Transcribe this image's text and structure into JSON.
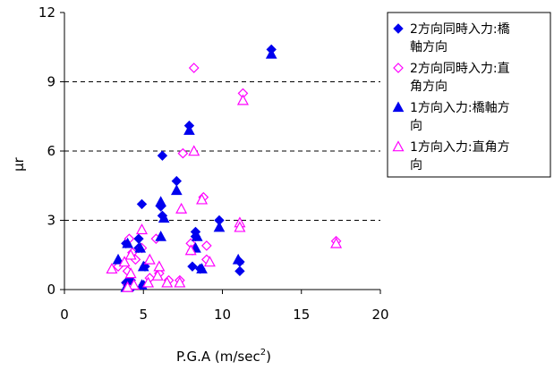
{
  "chart_data": {
    "type": "scatter",
    "title": "",
    "xlabel": "P.G.A (m/sec",
    "xlabel_sup": "2",
    "xlabel_suffix": ")",
    "ylabel": "μr",
    "xlim": [
      0,
      20
    ],
    "ylim": [
      0,
      12
    ],
    "x_ticks": [
      "0",
      "5",
      "10",
      "15",
      "20"
    ],
    "y_ticks": [
      "0",
      "3",
      "6",
      "9",
      "12"
    ],
    "grid": "horizontal dashed",
    "legend_position": "right",
    "series": [
      {
        "name_lines": [
          "2方向同時入力:橋",
          "軸方向"
        ],
        "marker": "diamond-filled",
        "color": "#0000ee",
        "points": [
          [
            13.1,
            10.4
          ],
          [
            7.9,
            7.1
          ],
          [
            6.2,
            5.8
          ],
          [
            7.1,
            4.7
          ],
          [
            4.9,
            3.7
          ],
          [
            6.1,
            3.6
          ],
          [
            6.2,
            3.2
          ],
          [
            9.8,
            3.0
          ],
          [
            8.3,
            2.5
          ],
          [
            8.3,
            2.3
          ],
          [
            4.7,
            2.2
          ],
          [
            3.9,
            2.0
          ],
          [
            4.7,
            1.8
          ],
          [
            11.1,
            1.2
          ],
          [
            8.1,
            1.0
          ],
          [
            5.1,
            1.0
          ],
          [
            8.6,
            0.9
          ],
          [
            11.1,
            0.8
          ],
          [
            4.2,
            0.4
          ],
          [
            3.9,
            0.3
          ],
          [
            5.0,
            0.2
          ],
          [
            4.3,
            0.1
          ]
        ]
      },
      {
        "name_lines": [
          "2方向同時入力:直",
          "角方向"
        ],
        "marker": "diamond-open",
        "color": "#ff00ff",
        "points": [
          [
            8.2,
            9.6
          ],
          [
            11.3,
            8.5
          ],
          [
            7.5,
            5.9
          ],
          [
            8.8,
            4.0
          ],
          [
            8.0,
            2.0
          ],
          [
            9.0,
            1.9
          ],
          [
            4.1,
            2.2
          ],
          [
            5.8,
            2.2
          ],
          [
            4.9,
            1.8
          ],
          [
            4.3,
            1.6
          ],
          [
            3.4,
            1.0
          ],
          [
            4.0,
            0.8
          ],
          [
            6.0,
            0.7
          ],
          [
            5.4,
            0.5
          ],
          [
            6.6,
            0.4
          ],
          [
            7.3,
            0.4
          ],
          [
            4.0,
            0.2
          ],
          [
            17.2,
            2.1
          ],
          [
            8.1,
            1.7
          ],
          [
            9.0,
            1.3
          ],
          [
            4.5,
            1.3
          ]
        ]
      },
      {
        "name_lines": [
          "1方向入力:橋軸方",
          "向"
        ],
        "marker": "triangle-filled",
        "color": "#0000ee",
        "points": [
          [
            13.1,
            10.2
          ],
          [
            7.9,
            6.9
          ],
          [
            7.1,
            4.3
          ],
          [
            6.1,
            3.8
          ],
          [
            6.3,
            3.1
          ],
          [
            9.8,
            2.7
          ],
          [
            8.4,
            2.3
          ],
          [
            6.1,
            2.3
          ],
          [
            4.8,
            1.8
          ],
          [
            4.0,
            2.0
          ],
          [
            3.4,
            1.3
          ],
          [
            11.0,
            1.3
          ],
          [
            8.3,
            1.8
          ],
          [
            5.0,
            1.0
          ],
          [
            8.7,
            0.9
          ],
          [
            4.1,
            0.4
          ],
          [
            4.9,
            0.2
          ],
          [
            3.9,
            0.1
          ]
        ]
      },
      {
        "name_lines": [
          "1方向入力:直角方",
          "向"
        ],
        "marker": "triangle-open",
        "color": "#ff00ff",
        "points": [
          [
            11.3,
            8.2
          ],
          [
            8.2,
            6.0
          ],
          [
            8.7,
            3.9
          ],
          [
            7.4,
            3.5
          ],
          [
            11.1,
            2.9
          ],
          [
            11.1,
            2.7
          ],
          [
            4.9,
            2.6
          ],
          [
            17.2,
            2.0
          ],
          [
            8.0,
            1.7
          ],
          [
            9.2,
            1.2
          ],
          [
            6.0,
            1.0
          ],
          [
            4.2,
            1.5
          ],
          [
            3.8,
            1.2
          ],
          [
            5.4,
            1.3
          ],
          [
            4.2,
            0.7
          ],
          [
            5.9,
            0.6
          ],
          [
            6.5,
            0.3
          ],
          [
            5.3,
            0.3
          ],
          [
            7.3,
            0.3
          ],
          [
            4.4,
            0.2
          ],
          [
            3.0,
            0.9
          ],
          [
            4.0,
            0.1
          ]
        ]
      }
    ]
  }
}
